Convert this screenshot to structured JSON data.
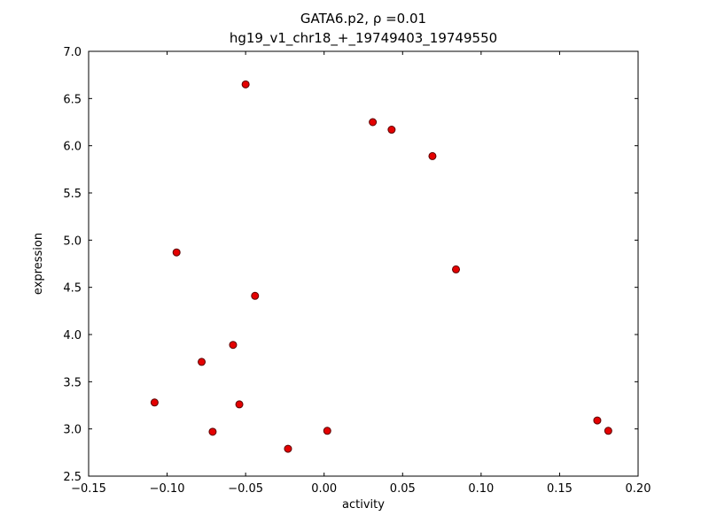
{
  "chart_data": {
    "type": "scatter",
    "title_line1": "GATA6.p2, ρ =0.01",
    "title_line2": "hg19_v1_chr18_+_19749403_19749550",
    "xlabel": "activity",
    "ylabel": "expression",
    "xlim": [
      -0.15,
      0.2
    ],
    "ylim": [
      2.5,
      7.0
    ],
    "grid": false,
    "legend": "none",
    "frame_color": "#000000",
    "background_color": "#ffffff",
    "marker": {
      "shape": "circle",
      "fill": "#e40000",
      "edge": "#5a0000",
      "radius": 4
    },
    "xtick_values": [
      -0.15,
      -0.1,
      -0.05,
      0.0,
      0.05,
      0.1,
      0.15,
      0.2
    ],
    "xtick_labels": [
      "−0.15",
      "−0.10",
      "−0.05",
      "0.00",
      "0.05",
      "0.10",
      "0.15",
      "0.20"
    ],
    "ytick_values": [
      2.5,
      3.0,
      3.5,
      4.0,
      4.5,
      5.0,
      5.5,
      6.0,
      6.5,
      7.0
    ],
    "ytick_labels": [
      "2.5",
      "3.0",
      "3.5",
      "4.0",
      "4.5",
      "5.0",
      "5.5",
      "6.0",
      "6.5",
      "7.0"
    ],
    "points": [
      {
        "x": -0.05,
        "y": 6.65
      },
      {
        "x": 0.031,
        "y": 6.25
      },
      {
        "x": 0.043,
        "y": 6.17
      },
      {
        "x": 0.069,
        "y": 5.89
      },
      {
        "x": -0.094,
        "y": 4.87
      },
      {
        "x": 0.084,
        "y": 4.69
      },
      {
        "x": -0.044,
        "y": 4.41
      },
      {
        "x": -0.058,
        "y": 3.89
      },
      {
        "x": -0.078,
        "y": 3.71
      },
      {
        "x": -0.108,
        "y": 3.28
      },
      {
        "x": -0.054,
        "y": 3.26
      },
      {
        "x": -0.071,
        "y": 2.97
      },
      {
        "x": 0.002,
        "y": 2.98
      },
      {
        "x": -0.023,
        "y": 2.79
      },
      {
        "x": 0.174,
        "y": 3.09
      },
      {
        "x": 0.181,
        "y": 2.98
      }
    ]
  }
}
